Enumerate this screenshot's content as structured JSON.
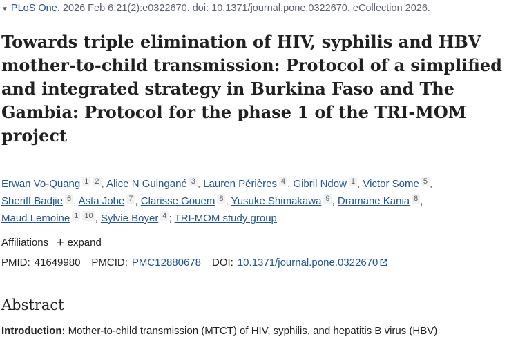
{
  "citation": {
    "journal": "PLoS One.",
    "details": "2026 Feb 6;21(2):e0322670. doi: 10.1371/journal.pone.0322670. eCollection 2026."
  },
  "title": "Towards triple elimination of HIV, syphilis and HBV mother-to-child transmission: Protocol of a simplified and integrated strategy in Burkina Faso and The Gambia: Protocol for the phase 1 of the TRI-MOM project",
  "authors": {
    "line1": [
      {
        "name": "Erwan Vo-Quang",
        "affs": [
          "1",
          "2"
        ]
      },
      {
        "name": "Alice N Guingané",
        "affs": [
          "3"
        ]
      },
      {
        "name": "Lauren Périères",
        "affs": [
          "4"
        ]
      },
      {
        "name": "Gibril Ndow",
        "affs": [
          "1"
        ]
      },
      {
        "name": "Victor Some",
        "affs": [
          "5"
        ]
      }
    ],
    "line2": [
      {
        "name": "Sheriff Badjie",
        "affs": [
          "6"
        ]
      },
      {
        "name": "Asta Jobe",
        "affs": [
          "7"
        ]
      },
      {
        "name": "Clarisse Gouem",
        "affs": [
          "8"
        ]
      },
      {
        "name": "Yusuke Shimakawa",
        "affs": [
          "9"
        ]
      },
      {
        "name": "Dramane Kania",
        "affs": [
          "8"
        ]
      }
    ],
    "line3": [
      {
        "name": "Maud Lemoine",
        "affs": [
          "1",
          "10"
        ]
      },
      {
        "name": "Sylvie Boyer",
        "affs": [
          "4"
        ]
      }
    ],
    "group": "TRI-MOM study group",
    "separator": ","
  },
  "affiliations": {
    "label": "Affiliations",
    "expand": "expand"
  },
  "ids": {
    "pmid_label": "PMID:",
    "pmid": "41649980",
    "pmcid_label": "PMCID:",
    "pmcid": "PMC12880678",
    "doi_label": "DOI:",
    "doi": "10.1371/journal.pone.0322670"
  },
  "abstract": {
    "heading": "Abstract",
    "intro_label": "Introduction:",
    "intro_text": "Mother-to-child transmission (MTCT) of HIV, syphilis, and hepatitis B virus (HBV)"
  },
  "colors": {
    "link": "#205493",
    "text": "#212121",
    "muted": "#5b616b"
  }
}
